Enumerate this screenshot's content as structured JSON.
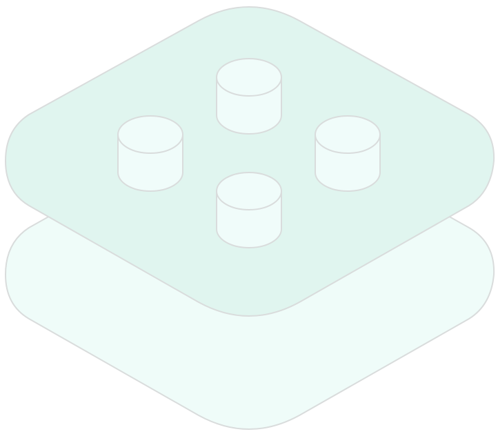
{
  "illustration": {
    "icon": "stacked-layers-with-cylinders-icon",
    "colors": {
      "background": "#ffffff",
      "bottom_layer_fill": "#effcf9",
      "top_layer_fill": "#e0f5ef",
      "cylinder_fill": "#f0fcfa",
      "outline": "#d9dcdc"
    },
    "layers": [
      {
        "name": "bottom-layer"
      },
      {
        "name": "top-layer"
      }
    ],
    "cylinders": [
      {
        "name": "cylinder-back"
      },
      {
        "name": "cylinder-left"
      },
      {
        "name": "cylinder-right"
      },
      {
        "name": "cylinder-front"
      }
    ]
  }
}
